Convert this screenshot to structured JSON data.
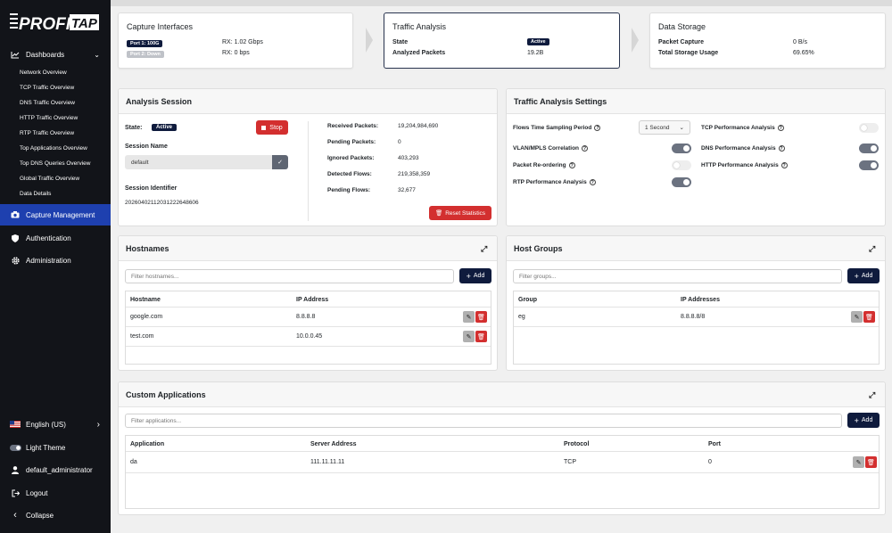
{
  "brand": {
    "logo_text_left": "PROFI",
    "logo_text_right": "TAP"
  },
  "sidebar": {
    "dashboards": "Dashboards",
    "sub_items": [
      "Network Overview",
      "TCP Traffic Overview",
      "DNS Traffic Overview",
      "HTTP Traffic Overview",
      "RTP Traffic Overview",
      "Top Applications Overview",
      "Top DNS Queries Overview",
      "Global Traffic Overview",
      "Data Details"
    ],
    "capture_management": "Capture Management",
    "authentication": "Authentication",
    "administration": "Administration",
    "language": "English (US)",
    "theme": "Light Theme",
    "user": "default_administrator",
    "logout": "Logout",
    "collapse": "Collapse"
  },
  "pipeline": {
    "capture": {
      "title": "Capture Interfaces",
      "port1_badge": "Port 1: 100G",
      "port1_rx": "RX: 1.02 Gbps",
      "port2_badge": "Port 2: Down",
      "port2_rx": "RX: 0 bps"
    },
    "traffic": {
      "title": "Traffic Analysis",
      "state_label": "State",
      "state_badge": "Active",
      "analyzed_label": "Analyzed Packets",
      "analyzed_value": "19.2B"
    },
    "storage": {
      "title": "Data Storage",
      "capture_label": "Packet Capture",
      "capture_value": "0 B/s",
      "usage_label": "Total Storage Usage",
      "usage_value": "69.65%"
    }
  },
  "session": {
    "title": "Analysis Session",
    "state_label": "State:",
    "state_badge": "Active",
    "stop_label": "Stop",
    "name_label": "Session Name",
    "name_value": "default",
    "id_label": "Session Identifier",
    "id_value": "20260402112031222648606",
    "stats": [
      {
        "label": "Received Packets:",
        "value": "19,204,984,690"
      },
      {
        "label": "Pending Packets:",
        "value": "0"
      },
      {
        "label": "Ignored Packets:",
        "value": "403,293"
      },
      {
        "label": "Detected Flows:",
        "value": "219,358,359"
      },
      {
        "label": "Pending Flows:",
        "value": "32,677"
      }
    ],
    "reset_label": "Reset Statistics"
  },
  "settings": {
    "title": "Traffic Analysis Settings",
    "sampling_label": "Flows Time Sampling Period",
    "sampling_value": "1 Second",
    "vlan_label": "VLAN/MPLS Correlation",
    "reorder_label": "Packet Re-ordering",
    "rtp_label": "RTP Performance Analysis",
    "tcp_label": "TCP Performance Analysis",
    "dns_label": "DNS Performance Analysis",
    "http_label": "HTTP Performance Analysis"
  },
  "hostnames": {
    "title": "Hostnames",
    "placeholder": "Filter hostnames...",
    "add_label": "Add",
    "col_host": "Hostname",
    "col_ip": "IP Address",
    "rows": [
      {
        "host": "google.com",
        "ip": "8.8.8.8"
      },
      {
        "host": "test.com",
        "ip": "10.0.0.45"
      }
    ]
  },
  "hostgroups": {
    "title": "Host Groups",
    "placeholder": "Filter groups...",
    "add_label": "Add",
    "col_group": "Group",
    "col_ips": "IP Addresses",
    "rows": [
      {
        "group": "eg",
        "ips": "8.8.8.8/8"
      }
    ]
  },
  "apps": {
    "title": "Custom Applications",
    "placeholder": "Filter applications...",
    "add_label": "Add",
    "col_app": "Application",
    "col_server": "Server Address",
    "col_proto": "Protocol",
    "col_port": "Port",
    "rows": [
      {
        "app": "da",
        "server": "111.11.11.11",
        "proto": "TCP",
        "port": "0"
      }
    ]
  }
}
